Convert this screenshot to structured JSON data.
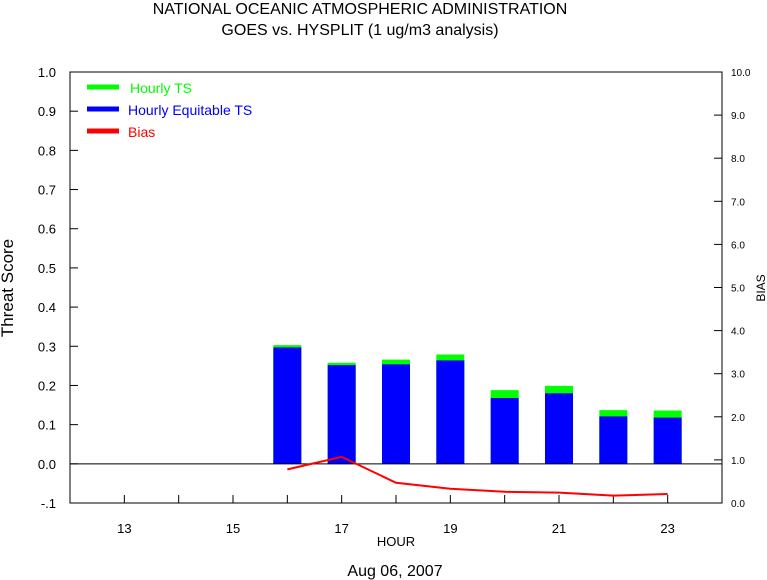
{
  "chart_data": {
    "type": "bar",
    "title": "NATIONAL OCEANIC ATMOSPHERIC ADMINISTRATION",
    "subtitle": "GOES vs. HYSPLIT  (1 ug/m3 analysis)",
    "xlabel": "HOUR",
    "ylabel": "Threat Score",
    "y2label": "BIAS",
    "date_label": "Aug 06, 2007",
    "xlim": [
      12,
      24
    ],
    "ylim": [
      -0.1,
      1.0
    ],
    "y2lim": [
      0.0,
      10.0
    ],
    "x_ticks": [
      13,
      14,
      15,
      16,
      17,
      18,
      19,
      20,
      21,
      22,
      23
    ],
    "x_tick_labels": [
      "13",
      "15",
      "17",
      "19",
      "21",
      "23"
    ],
    "x_tick_label_values": [
      13,
      15,
      17,
      19,
      21,
      23
    ],
    "y_tick_labels": [
      "1.0",
      "0.9",
      "0.8",
      "0.7",
      "0.6",
      "0.5",
      "0.4",
      "0.3",
      "0.2",
      "0.1",
      "0.0",
      "-.1"
    ],
    "y_tick_values": [
      1.0,
      0.9,
      0.8,
      0.7,
      0.6,
      0.5,
      0.4,
      0.3,
      0.2,
      0.1,
      0.0,
      -0.1
    ],
    "y2_tick_labels": [
      "10.0",
      "9.0",
      "8.0",
      "7.0",
      "6.0",
      "5.0",
      "4.0",
      "3.0",
      "2.0",
      "1.0",
      "0.0"
    ],
    "y2_tick_values": [
      10,
      9,
      8,
      7,
      6,
      5,
      4,
      3,
      2,
      1,
      0
    ],
    "x": [
      16,
      17,
      18,
      19,
      20,
      21,
      22,
      23
    ],
    "legend_position": "top-left",
    "series": [
      {
        "name": "Hourly TS",
        "color": "#00ff00",
        "axis": "left",
        "kind": "bar",
        "values": [
          0.303,
          0.258,
          0.266,
          0.279,
          0.188,
          0.199,
          0.137,
          0.136
        ]
      },
      {
        "name": "Hourly Equitable TS",
        "color": "#0000ff",
        "axis": "left",
        "kind": "bar",
        "values": [
          0.297,
          0.252,
          0.254,
          0.264,
          0.168,
          0.18,
          0.121,
          0.118
        ]
      },
      {
        "name": "Bias",
        "color": "#ff0000",
        "axis": "right",
        "kind": "line",
        "values": [
          0.78,
          1.07,
          0.47,
          0.33,
          0.26,
          0.24,
          0.17,
          0.21
        ]
      }
    ],
    "zero_line": true,
    "grid": false
  }
}
